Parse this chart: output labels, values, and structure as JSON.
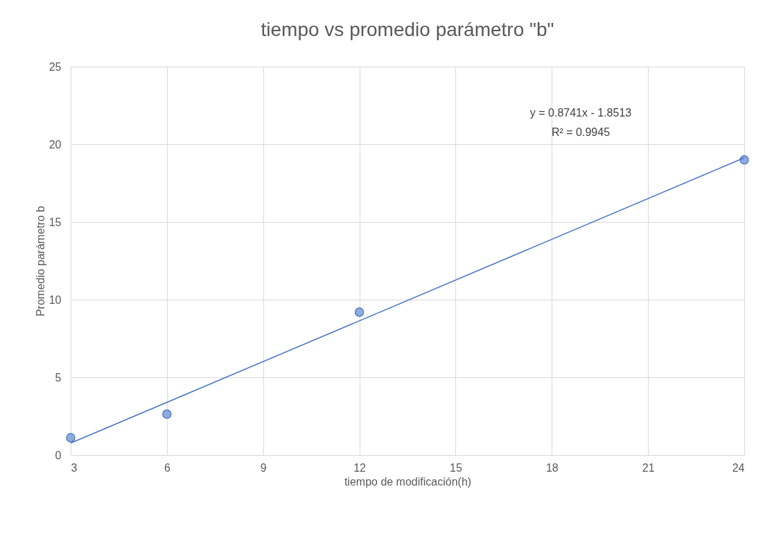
{
  "chart_data": {
    "type": "scatter",
    "title": "tiempo vs promedio parámetro \"b\"",
    "xlabel": "tiempo de modificación(h)",
    "ylabel": "Promedio parámetro b",
    "xlim": [
      3,
      24
    ],
    "xticks": [
      3,
      6,
      9,
      12,
      15,
      18,
      21,
      24
    ],
    "ylim": [
      0,
      25
    ],
    "yticks": [
      0,
      5,
      10,
      15,
      20,
      25
    ],
    "grid": true,
    "legend": false,
    "marker": "circle",
    "series": [
      {
        "color": "#8faadc",
        "x": [
          3,
          6,
          12,
          24
        ],
        "values": [
          1.12,
          2.63,
          9.2,
          19.0
        ]
      },
      {
        "type": "line",
        "color": "#4472c4",
        "line_style": "solid",
        "marker": "none",
        "x": [
          3,
          24
        ],
        "values": [
          0.77,
          19.13
        ]
      }
    ],
    "annotations": [
      "y = 0.8741x - 1.8513",
      "R² = 0.9945"
    ]
  }
}
